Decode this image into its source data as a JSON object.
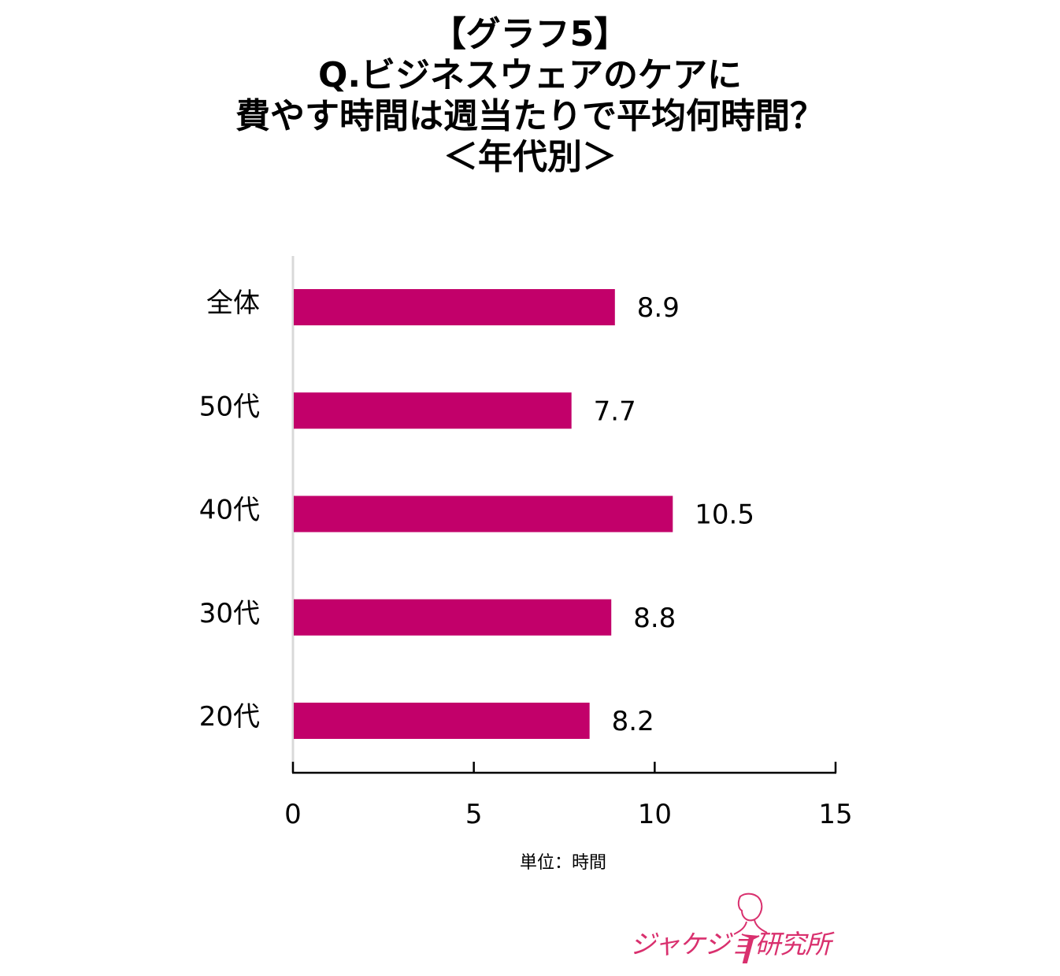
{
  "title": {
    "line1": "【グラフ5】",
    "line2": "Q.ビジネスウェアのケアに",
    "line3": "費やす時間は週当たりで平均何時間？",
    "line4": "＜年代別＞"
  },
  "chart_data": {
    "type": "bar",
    "orientation": "horizontal",
    "categories": [
      "全体",
      "50代",
      "40代",
      "30代",
      "20代"
    ],
    "values": [
      8.9,
      7.7,
      10.5,
      8.8,
      8.2
    ],
    "value_labels": [
      "8.9",
      "7.7",
      "10.5",
      "8.8",
      "8.2"
    ],
    "xlim": [
      0,
      15
    ],
    "xticks": [
      0,
      5,
      10,
      15
    ],
    "xtick_labels": [
      "0",
      "5",
      "10",
      "15"
    ],
    "xlabel": "単位：時間",
    "bar_color": "#c2006a",
    "grid": false
  },
  "logo": {
    "text": "ジャケジョ研究所",
    "color": "#d9306e",
    "icon": "woman-silhouette-icon"
  }
}
